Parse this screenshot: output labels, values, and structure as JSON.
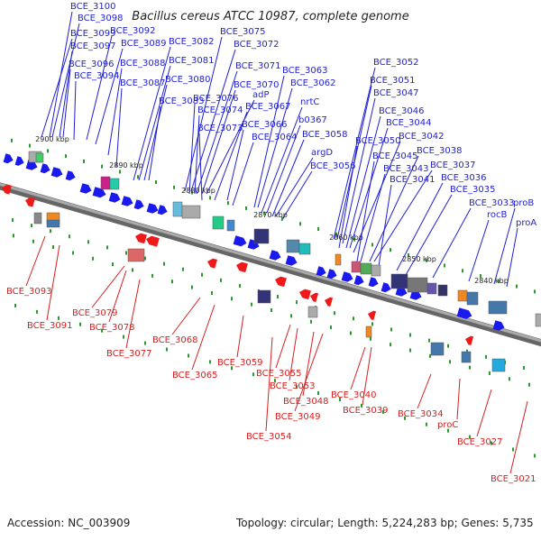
{
  "title": "Bacillus cereus ATCC 10987, complete genome",
  "accession_text": "Accession: NC_003909",
  "summary_text": "Topology: circular; Length: 5,224,283 bp; Genes: 5,735",
  "colors": {
    "forward_label": "#1f1fd6",
    "reverse_label": "#d61f1f",
    "forward_arrow": "#1a1aee",
    "reverse_arrow": "#ee1a1a",
    "backbone": "#888888",
    "tick": "#2a9a2a"
  },
  "scale_labels": [
    "2900 kbp",
    "2890 kbp",
    "2880 kbp",
    "2870 kbp",
    "2860 kbp",
    "2850 kbp",
    "2840 kbp"
  ],
  "forward_genes": [
    "BCE_3100",
    "BCE_3098",
    "BCE_3099",
    "BCE_3097",
    "BCE_3096",
    "BCE_3094",
    "BCE_3092",
    "BCE_3089",
    "BCE_3088",
    "BCE_3087",
    "BCE_3082",
    "BCE_3081",
    "BCE_3080",
    "BCE_3083",
    "BCE_3075",
    "BCE_3072",
    "BCE_3071",
    "BCE_3070",
    "adP",
    "BCE_3076",
    "BCE_3074",
    "BCE_3067",
    "BCE_3073",
    "BCE_3066",
    "BCE_3064",
    "BCE_3063",
    "BCE_3062",
    "nrtC",
    "b0367",
    "BCE_3058",
    "argD",
    "BCE_3056",
    "BCE_3052",
    "BCE_3051",
    "BCE_3047",
    "BCE_3046",
    "BCE_3044",
    "BCE_3042",
    "BCE_3050",
    "BCE_3045",
    "BCE_3038",
    "BCE_3043",
    "BCE_3037",
    "BCE_3041",
    "BCE_3036",
    "BCE_3035",
    "BCE_3033",
    "proB",
    "rocB",
    "proA"
  ],
  "reverse_genes": [
    "BCE_3093",
    "BCE_3091",
    "BCE_3079",
    "BCE_3078",
    "BCE_3077",
    "BCE_3068",
    "BCE_3065",
    "BCE_3059",
    "BCE_3055",
    "BCE_3053",
    "BCE_3048",
    "BCE_3049",
    "BCE_3054",
    "BCE_3040",
    "BCE_3039",
    "BCE_3034",
    "proC",
    "BCE_3027",
    "BCE_3021"
  ]
}
